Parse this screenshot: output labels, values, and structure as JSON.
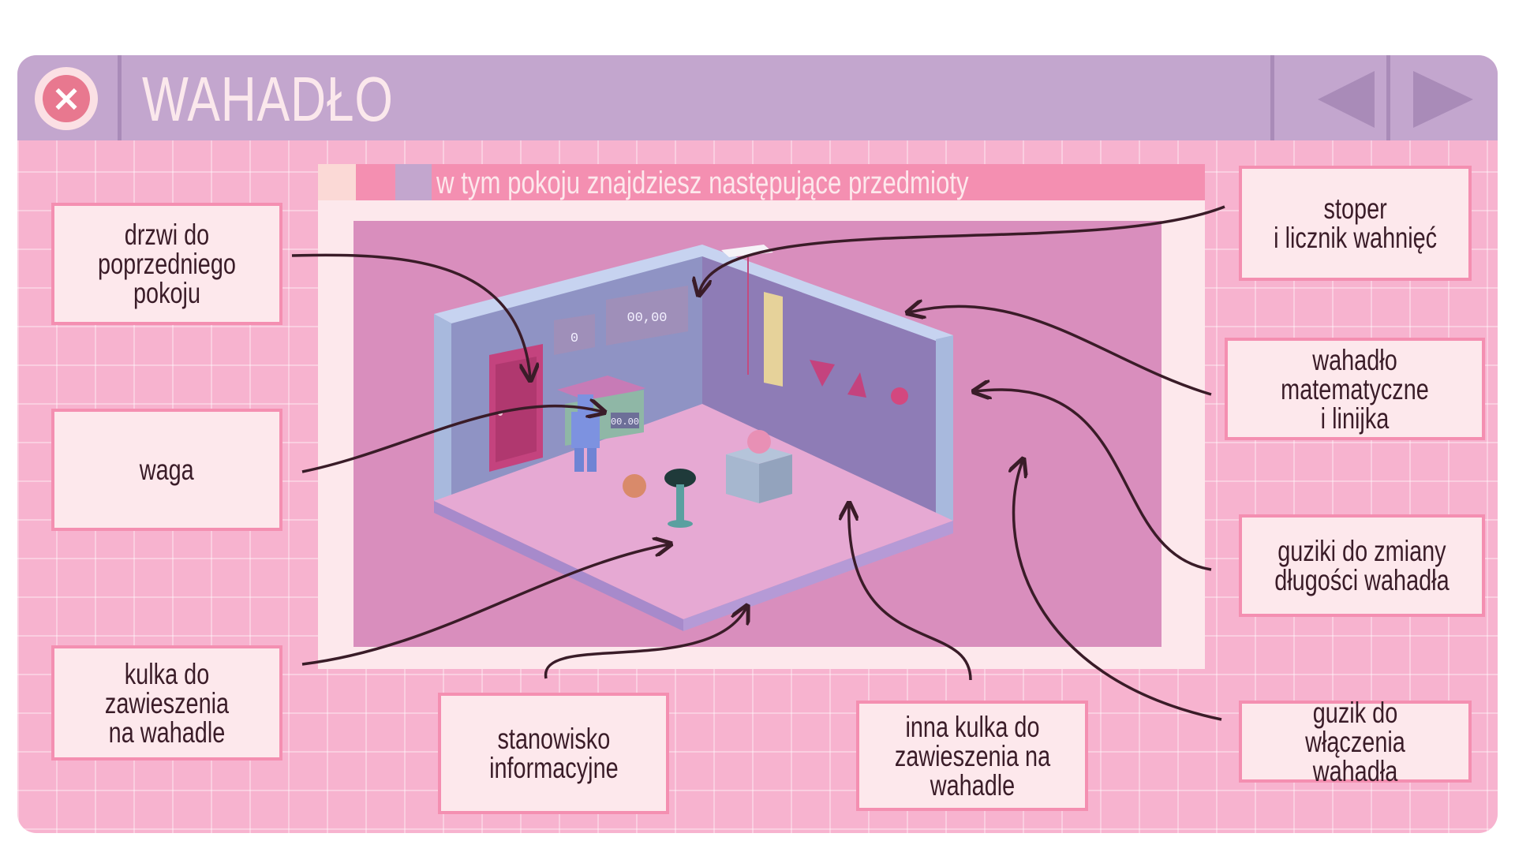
{
  "window": {
    "title": "WAHADŁO",
    "close_icon": "close-icon",
    "prev_icon": "triangle-left-icon",
    "next_icon": "triangle-right-icon",
    "colors": {
      "titlebar": "#c3a6ce",
      "background": "#f7b3cf",
      "accent": "#f48fb1",
      "label_bg": "#fde8ec",
      "arrow": "#3a1c28"
    }
  },
  "panel": {
    "heading": "w tym pokoju znajdziesz następujące przedmioty"
  },
  "scene": {
    "counter_value": "0",
    "stopwatch_value": "00,00",
    "scale_display": "00.00"
  },
  "labels": {
    "door": "drzwi do\npoprzedniego pokoju",
    "scale": "waga",
    "ball1": "kulka do zawieszenia\nna wahadle",
    "info_station": "stanowisko\ninformacyjne",
    "ball2": "inna kulka do\nzawieszenia na\nwahadle",
    "stopwatch": "stoper\ni licznik wahnięć",
    "pendulum": "wahadło matematyczne\ni linijka",
    "length_buttons": "guziki do zmiany\ndługości wahadła",
    "start_button": "guzik do włączenia\nwahadła"
  }
}
